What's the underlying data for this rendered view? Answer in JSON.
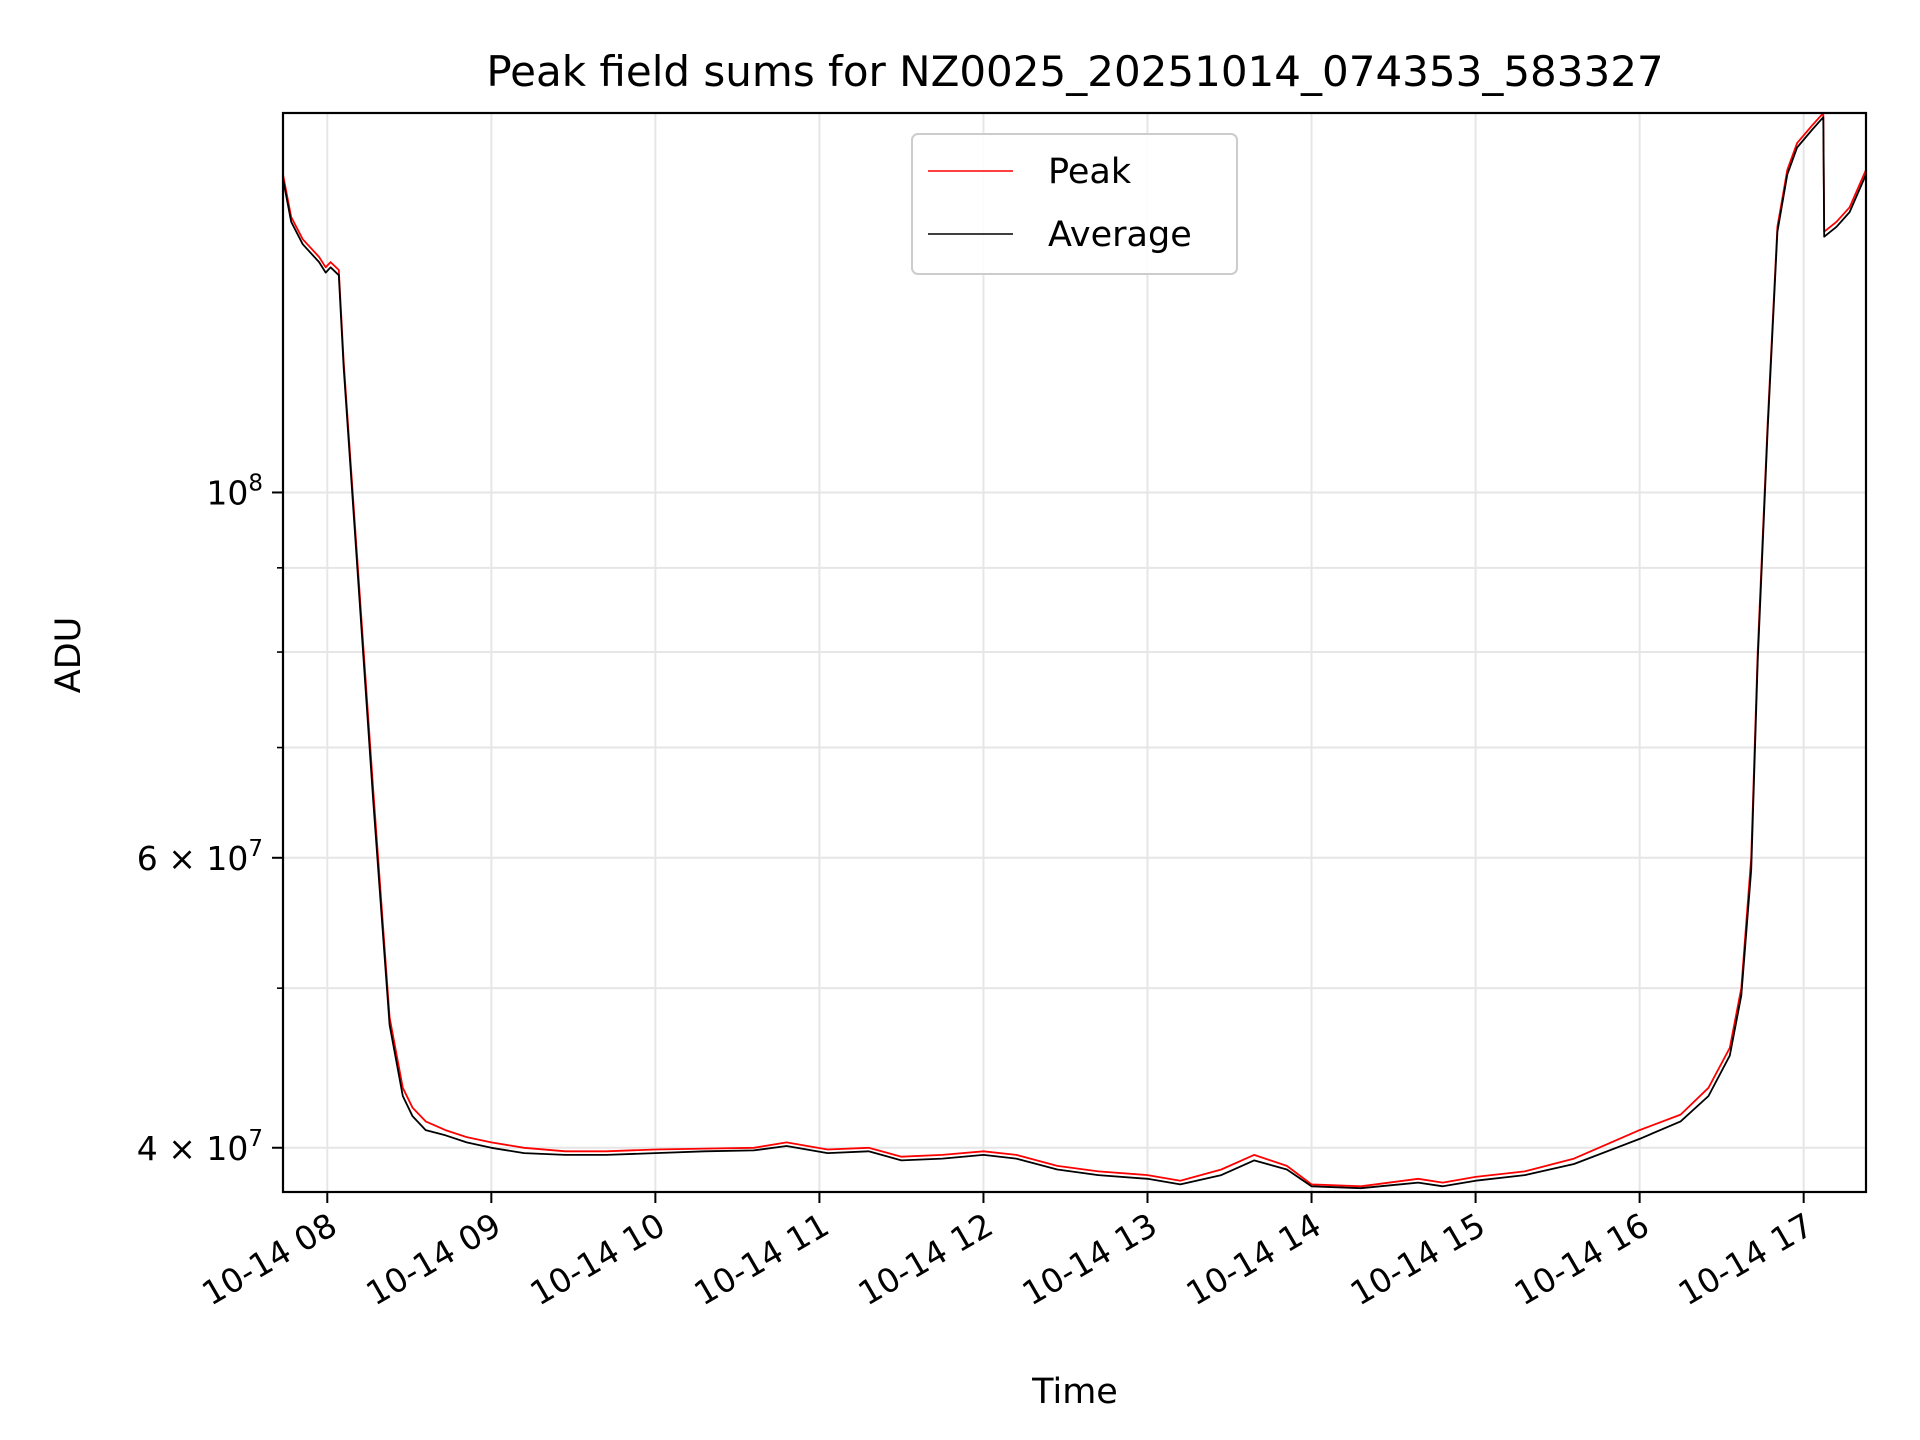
{
  "chart_data": {
    "type": "line",
    "title": "Peak field sums for NZ0025_20251014_074353_583327",
    "xlabel": "Time",
    "ylabel": "ADU",
    "yscale": "log",
    "xlim_hours": [
      7.73,
      17.38
    ],
    "ylim": [
      37600000,
      170000000
    ],
    "grid": true,
    "legend": {
      "position": "upper-center",
      "entries": [
        "Peak",
        "Average"
      ]
    },
    "x_ticks": [
      {
        "hour": 8,
        "label": "10-14 08"
      },
      {
        "hour": 9,
        "label": "10-14 09"
      },
      {
        "hour": 10,
        "label": "10-14 10"
      },
      {
        "hour": 11,
        "label": "10-14 11"
      },
      {
        "hour": 12,
        "label": "10-14 12"
      },
      {
        "hour": 13,
        "label": "10-14 13"
      },
      {
        "hour": 14,
        "label": "10-14 14"
      },
      {
        "hour": 15,
        "label": "10-14 15"
      },
      {
        "hour": 16,
        "label": "10-14 16"
      },
      {
        "hour": 17,
        "label": "10-14 17"
      }
    ],
    "y_major_ticks": [
      {
        "value": 40000000,
        "base": "4",
        "exp": "7",
        "label": "4 × 10^7"
      },
      {
        "value": 60000000,
        "base": "6",
        "exp": "7",
        "label": "6 × 10^7"
      },
      {
        "value": 100000000,
        "base": "10",
        "exp": "8",
        "label": "10^8"
      }
    ],
    "y_minor_ticks": [
      50000000,
      70000000,
      80000000,
      90000000
    ],
    "series": [
      {
        "name": "Peak",
        "color": "#ff0000",
        "x": [
          7.73,
          7.78,
          7.85,
          7.95,
          7.99,
          8.02,
          8.07,
          8.1,
          8.18,
          8.28,
          8.38,
          8.46,
          8.52,
          8.6,
          8.72,
          8.85,
          9.0,
          9.2,
          9.45,
          9.7,
          10.0,
          10.3,
          10.6,
          10.8,
          11.05,
          11.3,
          11.5,
          11.75,
          12.0,
          12.2,
          12.45,
          12.7,
          13.0,
          13.2,
          13.45,
          13.65,
          13.85,
          14.0,
          14.3,
          14.65,
          14.8,
          15.0,
          15.3,
          15.6,
          16.0,
          16.25,
          16.42,
          16.55,
          16.62,
          16.68,
          16.72,
          16.78,
          16.84,
          16.9,
          16.96,
          17.05,
          17.12,
          17.125,
          17.2,
          17.28,
          17.38
        ],
        "y": [
          156000000,
          147000000,
          142500000,
          139000000,
          137000000,
          138000000,
          136500000,
          120000000,
          92000000,
          66000000,
          48000000,
          43500000,
          42300000,
          41500000,
          41000000,
          40600000,
          40300000,
          40000000,
          39800000,
          39800000,
          39900000,
          39950000,
          40000000,
          40300000,
          39900000,
          40000000,
          39500000,
          39600000,
          39800000,
          39600000,
          39000000,
          38700000,
          38500000,
          38200000,
          38800000,
          39600000,
          39000000,
          38000000,
          37900000,
          38300000,
          38100000,
          38400000,
          38700000,
          39400000,
          41000000,
          41900000,
          43500000,
          46000000,
          50000000,
          60000000,
          80000000,
          110000000,
          145000000,
          157000000,
          163000000,
          167000000,
          170000000,
          144000000,
          146000000,
          149000000,
          157000000
        ]
      },
      {
        "name": "Average",
        "color": "#000000",
        "x": [
          7.73,
          7.78,
          7.85,
          7.95,
          7.99,
          8.02,
          8.07,
          8.1,
          8.18,
          8.28,
          8.38,
          8.46,
          8.52,
          8.6,
          8.72,
          8.85,
          9.0,
          9.2,
          9.45,
          9.7,
          10.0,
          10.3,
          10.6,
          10.8,
          11.05,
          11.3,
          11.5,
          11.75,
          12.0,
          12.2,
          12.45,
          12.7,
          13.0,
          13.2,
          13.45,
          13.65,
          13.85,
          14.0,
          14.3,
          14.65,
          14.8,
          15.0,
          15.3,
          15.6,
          16.0,
          16.25,
          16.42,
          16.55,
          16.62,
          16.68,
          16.72,
          16.78,
          16.84,
          16.9,
          16.96,
          17.05,
          17.12,
          17.125,
          17.2,
          17.28,
          17.38
        ],
        "y": [
          155000000,
          146000000,
          141500000,
          138000000,
          136000000,
          137000000,
          135500000,
          119000000,
          91000000,
          65000000,
          47500000,
          43000000,
          41800000,
          41000000,
          40700000,
          40300000,
          40000000,
          39700000,
          39600000,
          39600000,
          39700000,
          39800000,
          39850000,
          40100000,
          39700000,
          39800000,
          39300000,
          39400000,
          39600000,
          39400000,
          38800000,
          38500000,
          38300000,
          38000000,
          38500000,
          39300000,
          38800000,
          37900000,
          37800000,
          38100000,
          37900000,
          38200000,
          38500000,
          39100000,
          40500000,
          41500000,
          43000000,
          45500000,
          49500000,
          59000000,
          79000000,
          109000000,
          144000000,
          156000000,
          162000000,
          166000000,
          169000000,
          143000000,
          145000000,
          148000000,
          156000000
        ]
      }
    ]
  }
}
